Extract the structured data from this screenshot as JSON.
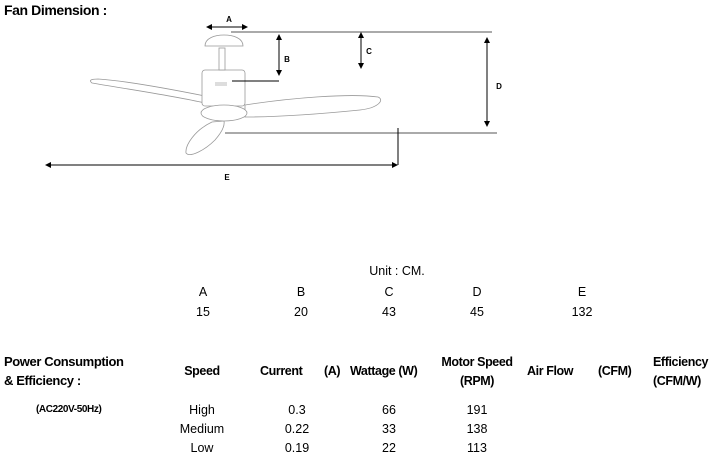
{
  "title": "Fan Dimension :",
  "diagram": {
    "labels": [
      "A",
      "B",
      "C",
      "D",
      "E"
    ]
  },
  "dimensions": {
    "unit_label": "Unit : CM.",
    "columns": [
      {
        "label": "A",
        "value": "15"
      },
      {
        "label": "B",
        "value": "20"
      },
      {
        "label": "C",
        "value": "43"
      },
      {
        "label": "D",
        "value": "45"
      },
      {
        "label": "E",
        "value": "132"
      }
    ]
  },
  "power": {
    "title_line1": "Power Consumption",
    "title_line2": "& Efficiency :",
    "supply": "(AC220V-50Hz)",
    "headers": {
      "speed": "Speed",
      "current": "Current",
      "current_unit": "(A)",
      "wattage": "Wattage (W)",
      "motor_speed_line1": "Motor Speed",
      "motor_speed_line2": "(RPM)",
      "air_flow": "Air Flow",
      "air_flow_unit": "(CFM)",
      "efficiency_line1": "Efficiency",
      "efficiency_line2": "(CFM/W)"
    },
    "rows": [
      {
        "speed": "High",
        "current": "0.3",
        "wattage": "66",
        "rpm": "191"
      },
      {
        "speed": "Medium",
        "current": "0.22",
        "wattage": "33",
        "rpm": "138"
      },
      {
        "speed": "Low",
        "current": "0.19",
        "wattage": "22",
        "rpm": "113"
      }
    ]
  }
}
